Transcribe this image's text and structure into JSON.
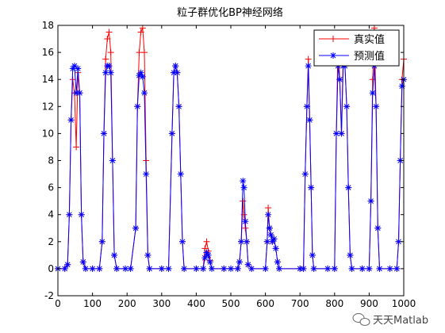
{
  "chart_data": {
    "type": "line",
    "title": "粒子群优化BP神经网络",
    "xlabel": "",
    "ylabel": "",
    "xlim": [
      0,
      1000
    ],
    "ylim": [
      -2,
      18
    ],
    "xticks": [
      0,
      100,
      200,
      300,
      400,
      500,
      600,
      700,
      800,
      900,
      1000
    ],
    "yticks": [
      -2,
      0,
      2,
      4,
      6,
      8,
      10,
      12,
      14,
      16,
      18
    ],
    "grid": false,
    "legend_position": "top-right",
    "series": [
      {
        "name": "真实值",
        "color": "#ff0000",
        "marker": "plus",
        "points": [
          [
            0,
            0
          ],
          [
            20,
            0
          ],
          [
            28,
            0.3
          ],
          [
            33,
            4
          ],
          [
            38,
            11
          ],
          [
            43,
            14
          ],
          [
            48,
            13
          ],
          [
            53,
            9
          ],
          [
            58,
            14.5
          ],
          [
            63,
            13
          ],
          [
            68,
            4
          ],
          [
            73,
            0.5
          ],
          [
            80,
            0
          ],
          [
            100,
            0
          ],
          [
            120,
            0
          ],
          [
            128,
            2
          ],
          [
            133,
            10
          ],
          [
            138,
            15.5
          ],
          [
            143,
            17
          ],
          [
            148,
            17.5
          ],
          [
            153,
            16
          ],
          [
            158,
            8
          ],
          [
            163,
            1
          ],
          [
            170,
            0
          ],
          [
            195,
            0
          ],
          [
            210,
            0
          ],
          [
            225,
            3
          ],
          [
            230,
            12
          ],
          [
            235,
            16
          ],
          [
            240,
            17.5
          ],
          [
            245,
            17.8
          ],
          [
            250,
            16
          ],
          [
            255,
            8
          ],
          [
            260,
            1
          ],
          [
            265,
            0
          ],
          [
            300,
            0
          ],
          [
            320,
            0
          ],
          [
            330,
            10
          ],
          [
            335,
            14.5
          ],
          [
            340,
            15
          ],
          [
            345,
            14.5
          ],
          [
            350,
            12
          ],
          [
            355,
            7
          ],
          [
            360,
            2
          ],
          [
            365,
            0
          ],
          [
            400,
            0
          ],
          [
            420,
            0
          ],
          [
            425,
            1.5
          ],
          [
            430,
            2
          ],
          [
            435,
            1.3
          ],
          [
            440,
            0.6
          ],
          [
            445,
            0
          ],
          [
            480,
            0
          ],
          [
            500,
            0
          ],
          [
            520,
            0
          ],
          [
            525,
            0.5
          ],
          [
            530,
            2
          ],
          [
            535,
            5
          ],
          [
            538,
            4
          ],
          [
            542,
            3
          ],
          [
            546,
            2
          ],
          [
            550,
            0.3
          ],
          [
            560,
            0
          ],
          [
            600,
            0
          ],
          [
            605,
            2
          ],
          [
            608,
            4.5
          ],
          [
            612,
            3
          ],
          [
            616,
            2.5
          ],
          [
            620,
            2
          ],
          [
            625,
            2.2
          ],
          [
            630,
            1.5
          ],
          [
            635,
            0.5
          ],
          [
            640,
            0
          ],
          [
            700,
            0
          ],
          [
            710,
            0
          ],
          [
            715,
            7
          ],
          [
            720,
            12
          ],
          [
            724,
            15.5
          ],
          [
            728,
            11
          ],
          [
            732,
            6
          ],
          [
            736,
            1
          ],
          [
            740,
            0
          ],
          [
            780,
            0
          ],
          [
            800,
            0
          ],
          [
            805,
            10
          ],
          [
            810,
            17
          ],
          [
            815,
            14
          ],
          [
            820,
            10
          ],
          [
            825,
            16
          ],
          [
            830,
            15
          ],
          [
            835,
            12
          ],
          [
            840,
            6
          ],
          [
            845,
            1
          ],
          [
            850,
            0
          ],
          [
            880,
            0
          ],
          [
            900,
            0
          ],
          [
            905,
            5
          ],
          [
            910,
            14
          ],
          [
            915,
            17.8
          ],
          [
            920,
            12
          ],
          [
            925,
            3
          ],
          [
            930,
            0
          ],
          [
            960,
            0
          ],
          [
            980,
            0
          ],
          [
            985,
            2
          ],
          [
            990,
            8
          ],
          [
            995,
            14
          ],
          [
            1000,
            15.5
          ]
        ]
      },
      {
        "name": "预测值",
        "color": "#0000ff",
        "marker": "star",
        "points": [
          [
            0,
            0
          ],
          [
            20,
            0
          ],
          [
            28,
            0.3
          ],
          [
            33,
            4
          ],
          [
            38,
            11
          ],
          [
            43,
            14.8
          ],
          [
            48,
            15
          ],
          [
            53,
            13
          ],
          [
            58,
            14.8
          ],
          [
            63,
            13
          ],
          [
            68,
            4
          ],
          [
            73,
            0.5
          ],
          [
            80,
            0
          ],
          [
            100,
            0
          ],
          [
            120,
            0
          ],
          [
            128,
            2
          ],
          [
            133,
            10
          ],
          [
            138,
            14.5
          ],
          [
            143,
            15
          ],
          [
            148,
            15
          ],
          [
            153,
            14.5
          ],
          [
            158,
            8
          ],
          [
            163,
            1
          ],
          [
            170,
            0
          ],
          [
            195,
            0
          ],
          [
            210,
            0
          ],
          [
            225,
            3
          ],
          [
            230,
            12
          ],
          [
            235,
            14.3
          ],
          [
            240,
            14.5
          ],
          [
            245,
            14.2
          ],
          [
            250,
            13
          ],
          [
            255,
            7
          ],
          [
            260,
            1
          ],
          [
            265,
            0
          ],
          [
            300,
            0
          ],
          [
            320,
            0
          ],
          [
            330,
            10
          ],
          [
            335,
            14.5
          ],
          [
            340,
            15
          ],
          [
            345,
            14.5
          ],
          [
            350,
            12
          ],
          [
            355,
            7
          ],
          [
            360,
            2
          ],
          [
            365,
            0
          ],
          [
            400,
            0
          ],
          [
            420,
            0
          ],
          [
            425,
            0.8
          ],
          [
            430,
            1.2
          ],
          [
            435,
            1
          ],
          [
            440,
            0.5
          ],
          [
            445,
            0
          ],
          [
            480,
            0
          ],
          [
            500,
            0
          ],
          [
            520,
            0
          ],
          [
            525,
            0.5
          ],
          [
            530,
            2
          ],
          [
            535,
            6.5
          ],
          [
            538,
            6
          ],
          [
            542,
            3.5
          ],
          [
            546,
            2
          ],
          [
            550,
            0.3
          ],
          [
            560,
            0
          ],
          [
            600,
            0
          ],
          [
            605,
            2
          ],
          [
            608,
            4
          ],
          [
            612,
            3
          ],
          [
            616,
            2.5
          ],
          [
            620,
            2
          ],
          [
            625,
            2.2
          ],
          [
            630,
            1.5
          ],
          [
            635,
            0.5
          ],
          [
            640,
            0
          ],
          [
            700,
            0
          ],
          [
            710,
            0
          ],
          [
            715,
            7
          ],
          [
            720,
            12
          ],
          [
            724,
            15
          ],
          [
            728,
            11
          ],
          [
            732,
            6
          ],
          [
            736,
            1
          ],
          [
            740,
            0
          ],
          [
            780,
            0
          ],
          [
            800,
            0
          ],
          [
            805,
            10
          ],
          [
            810,
            15
          ],
          [
            815,
            14
          ],
          [
            820,
            10
          ],
          [
            825,
            15
          ],
          [
            830,
            15
          ],
          [
            835,
            12
          ],
          [
            840,
            6
          ],
          [
            845,
            1
          ],
          [
            850,
            0
          ],
          [
            880,
            0
          ],
          [
            900,
            0
          ],
          [
            905,
            5
          ],
          [
            910,
            13
          ],
          [
            915,
            15
          ],
          [
            920,
            12
          ],
          [
            925,
            3
          ],
          [
            930,
            0
          ],
          [
            960,
            0
          ],
          [
            980,
            0
          ],
          [
            985,
            2
          ],
          [
            990,
            8
          ],
          [
            995,
            13.5
          ],
          [
            1000,
            14
          ]
        ]
      }
    ]
  },
  "watermark": {
    "icon": "wechat-bubble-icon",
    "text": "天天Matlab"
  }
}
